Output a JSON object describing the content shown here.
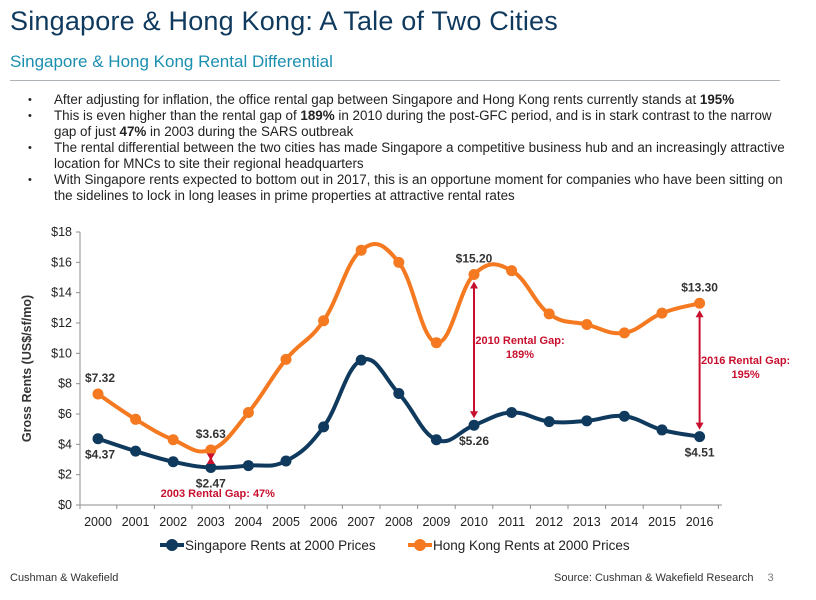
{
  "header": {
    "title": "Singapore & Hong Kong: A Tale of Two Cities",
    "subtitle": "Singapore & Hong Kong Rental Differential"
  },
  "bullets": [
    {
      "parts": [
        "After adjusting for inflation, the office rental gap between Singapore and Hong Kong rents currently stands at ",
        "195%",
        ""
      ]
    },
    {
      "parts": [
        "This is even higher than the rental gap of ",
        "189%",
        " in 2010 during the post-GFC period, and is in stark contrast to the narrow gap of just ",
        "47%",
        " in 2003 during the SARS outbreak"
      ]
    },
    {
      "parts": [
        "The rental differential between the two cities has made Singapore a competitive business hub and an increasingly attractive location for MNCs to site their regional headquarters"
      ]
    },
    {
      "parts": [
        "With Singapore rents expected to bottom out in 2017, this is an opportune moment for companies who have been sitting on the sidelines to lock in long leases in prime properties at attractive rental rates"
      ]
    }
  ],
  "chart_data": {
    "type": "line",
    "categories": [
      "2000",
      "2001",
      "2002",
      "2003",
      "2004",
      "2005",
      "2006",
      "2007",
      "2008",
      "2009",
      "2010",
      "2011",
      "2012",
      "2013",
      "2014",
      "2015",
      "2016"
    ],
    "ylabel": "Gross Rents (US$/sf/mo)",
    "ylim": [
      0,
      18
    ],
    "yticks": [
      0,
      2,
      4,
      6,
      8,
      10,
      12,
      14,
      16,
      18
    ],
    "ytick_labels": [
      "$0",
      "$2",
      "$4",
      "$6",
      "$8",
      "$10",
      "$12",
      "$14",
      "$16",
      "$18"
    ],
    "series": [
      {
        "name": "Singapore Rents at 2000 Prices",
        "color": "#0f3a5e",
        "values": [
          4.37,
          3.55,
          2.85,
          2.47,
          2.6,
          2.9,
          5.15,
          9.55,
          7.35,
          4.3,
          5.26,
          6.1,
          5.5,
          5.55,
          5.85,
          4.95,
          4.51
        ]
      },
      {
        "name": "Hong Kong Rents at 2000 Prices",
        "color": "#f47920",
        "values": [
          7.32,
          5.65,
          4.3,
          3.63,
          6.1,
          9.6,
          12.15,
          16.8,
          16.0,
          10.7,
          15.2,
          15.45,
          12.6,
          11.9,
          11.35,
          12.65,
          13.3
        ]
      }
    ],
    "point_labels": [
      {
        "series": 1,
        "index": 0,
        "text": "$7.32",
        "pos": "above"
      },
      {
        "series": 0,
        "index": 0,
        "text": "$4.37",
        "pos": "below"
      },
      {
        "series": 1,
        "index": 3,
        "text": "$3.63",
        "pos": "above"
      },
      {
        "series": 0,
        "index": 3,
        "text": "$2.47",
        "pos": "below"
      },
      {
        "series": 1,
        "index": 10,
        "text": "$15.20",
        "pos": "above"
      },
      {
        "series": 0,
        "index": 10,
        "text": "$5.26",
        "pos": "below"
      },
      {
        "series": 1,
        "index": 16,
        "text": "$13.30",
        "pos": "above"
      },
      {
        "series": 0,
        "index": 16,
        "text": "$4.51",
        "pos": "below"
      }
    ],
    "gap_annotations": [
      {
        "index": 3,
        "lines": [
          "2003 Rental Gap: 47%"
        ],
        "placement": "below"
      },
      {
        "index": 10,
        "lines": [
          "2010 Rental Gap:",
          "189%"
        ],
        "placement": "right"
      },
      {
        "index": 16,
        "lines": [
          "2016 Rental Gap:",
          "195%"
        ],
        "placement": "right"
      }
    ],
    "annotation_color": "#c8102e",
    "legend_position": "bottom"
  },
  "footer": {
    "left": "Cushman & Wakefield",
    "source": "Source: Cushman & Wakefield Research",
    "page": "3"
  }
}
